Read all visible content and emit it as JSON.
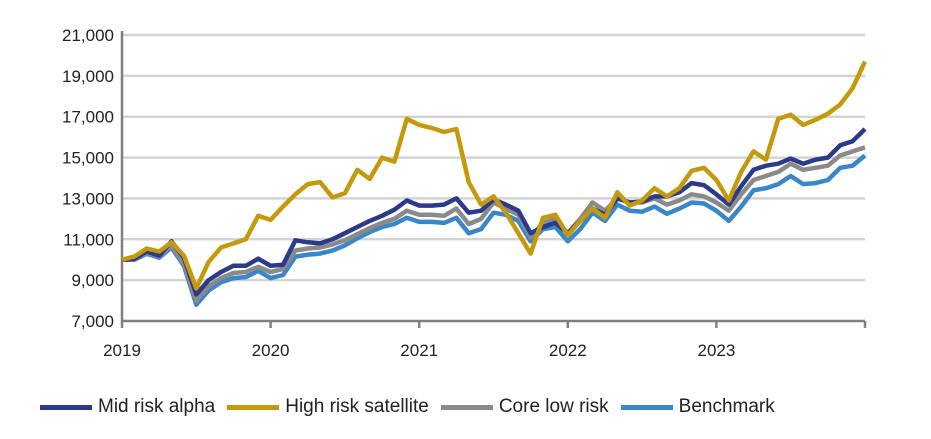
{
  "chart_data": {
    "type": "line",
    "title": "",
    "xlabel": "",
    "ylabel": "",
    "ylim": [
      7000,
      21000
    ],
    "yticks": [
      "7,000",
      "9,000",
      "11,000",
      "13,000",
      "15,000",
      "17,000",
      "19,000",
      "21,000"
    ],
    "ytick_values": [
      7000,
      9000,
      11000,
      13000,
      15000,
      17000,
      19000,
      21000
    ],
    "xticks": [
      "2019",
      "2020",
      "2021",
      "2022",
      "2023"
    ],
    "x_start": "2019-01",
    "x_frequency": "monthly",
    "grid": "horizontal",
    "legend_position": "bottom",
    "series": [
      {
        "name": "Mid risk alpha",
        "color": "#2b3a8a",
        "values": [
          10000,
          10050,
          10400,
          10200,
          10900,
          10100,
          8300,
          9000,
          9400,
          9700,
          9700,
          10050,
          9700,
          9750,
          10950,
          10850,
          10800,
          11000,
          11300,
          11600,
          11900,
          12150,
          12450,
          12900,
          12650,
          12650,
          12700,
          13000,
          12300,
          12400,
          12950,
          12700,
          12400,
          11300,
          11600,
          11800,
          11300,
          11900,
          12500,
          12200,
          13000,
          12800,
          12850,
          13100,
          13100,
          13300,
          13750,
          13650,
          13200,
          12700,
          13600,
          14400,
          14600,
          14700,
          14950,
          14700,
          14900,
          15000,
          15600,
          15800,
          16400
        ]
      },
      {
        "name": "High risk satellite",
        "color": "#c49a0c",
        "values": [
          10000,
          10150,
          10550,
          10400,
          10850,
          10200,
          8600,
          9900,
          10600,
          10800,
          11000,
          12150,
          11950,
          12600,
          13200,
          13700,
          13800,
          13050,
          13250,
          14400,
          13950,
          15000,
          14800,
          16900,
          16600,
          16450,
          16250,
          16400,
          13800,
          12700,
          13100,
          12300,
          11300,
          10300,
          12050,
          12200,
          11200,
          11900,
          12500,
          12050,
          13300,
          12650,
          12900,
          13500,
          13100,
          13500,
          14350,
          14500,
          13900,
          12900,
          14300,
          15300,
          14900,
          16900,
          17100,
          16600,
          16850,
          17150,
          17600,
          18400,
          19700
        ]
      },
      {
        "name": "Core low risk",
        "color": "#8a8a8a",
        "values": [
          10000,
          10050,
          10350,
          10150,
          10700,
          9800,
          8000,
          8700,
          9100,
          9350,
          9400,
          9650,
          9400,
          9550,
          10450,
          10550,
          10600,
          10750,
          10950,
          11250,
          11550,
          11800,
          12000,
          12400,
          12200,
          12200,
          12150,
          12500,
          11750,
          12000,
          12800,
          12500,
          12200,
          11100,
          11800,
          12000,
          11300,
          12000,
          12800,
          12400,
          13000,
          12800,
          12800,
          13000,
          12700,
          12900,
          13200,
          13100,
          12800,
          12400,
          13200,
          13900,
          14100,
          14300,
          14700,
          14400,
          14500,
          14600,
          15100,
          15300,
          15500
        ]
      },
      {
        "name": "Benchmark",
        "color": "#3a87c8",
        "values": [
          10000,
          10000,
          10300,
          10100,
          10600,
          9700,
          7800,
          8500,
          8900,
          9100,
          9150,
          9450,
          9100,
          9250,
          10150,
          10250,
          10300,
          10450,
          10700,
          11050,
          11350,
          11600,
          11750,
          12050,
          11850,
          11850,
          11800,
          12050,
          11300,
          11500,
          12300,
          12200,
          11900,
          10900,
          11500,
          11600,
          10900,
          11500,
          12300,
          11900,
          12700,
          12400,
          12350,
          12600,
          12250,
          12500,
          12800,
          12750,
          12400,
          11900,
          12600,
          13400,
          13500,
          13700,
          14100,
          13700,
          13750,
          13900,
          14500,
          14600,
          15100
        ]
      }
    ]
  }
}
